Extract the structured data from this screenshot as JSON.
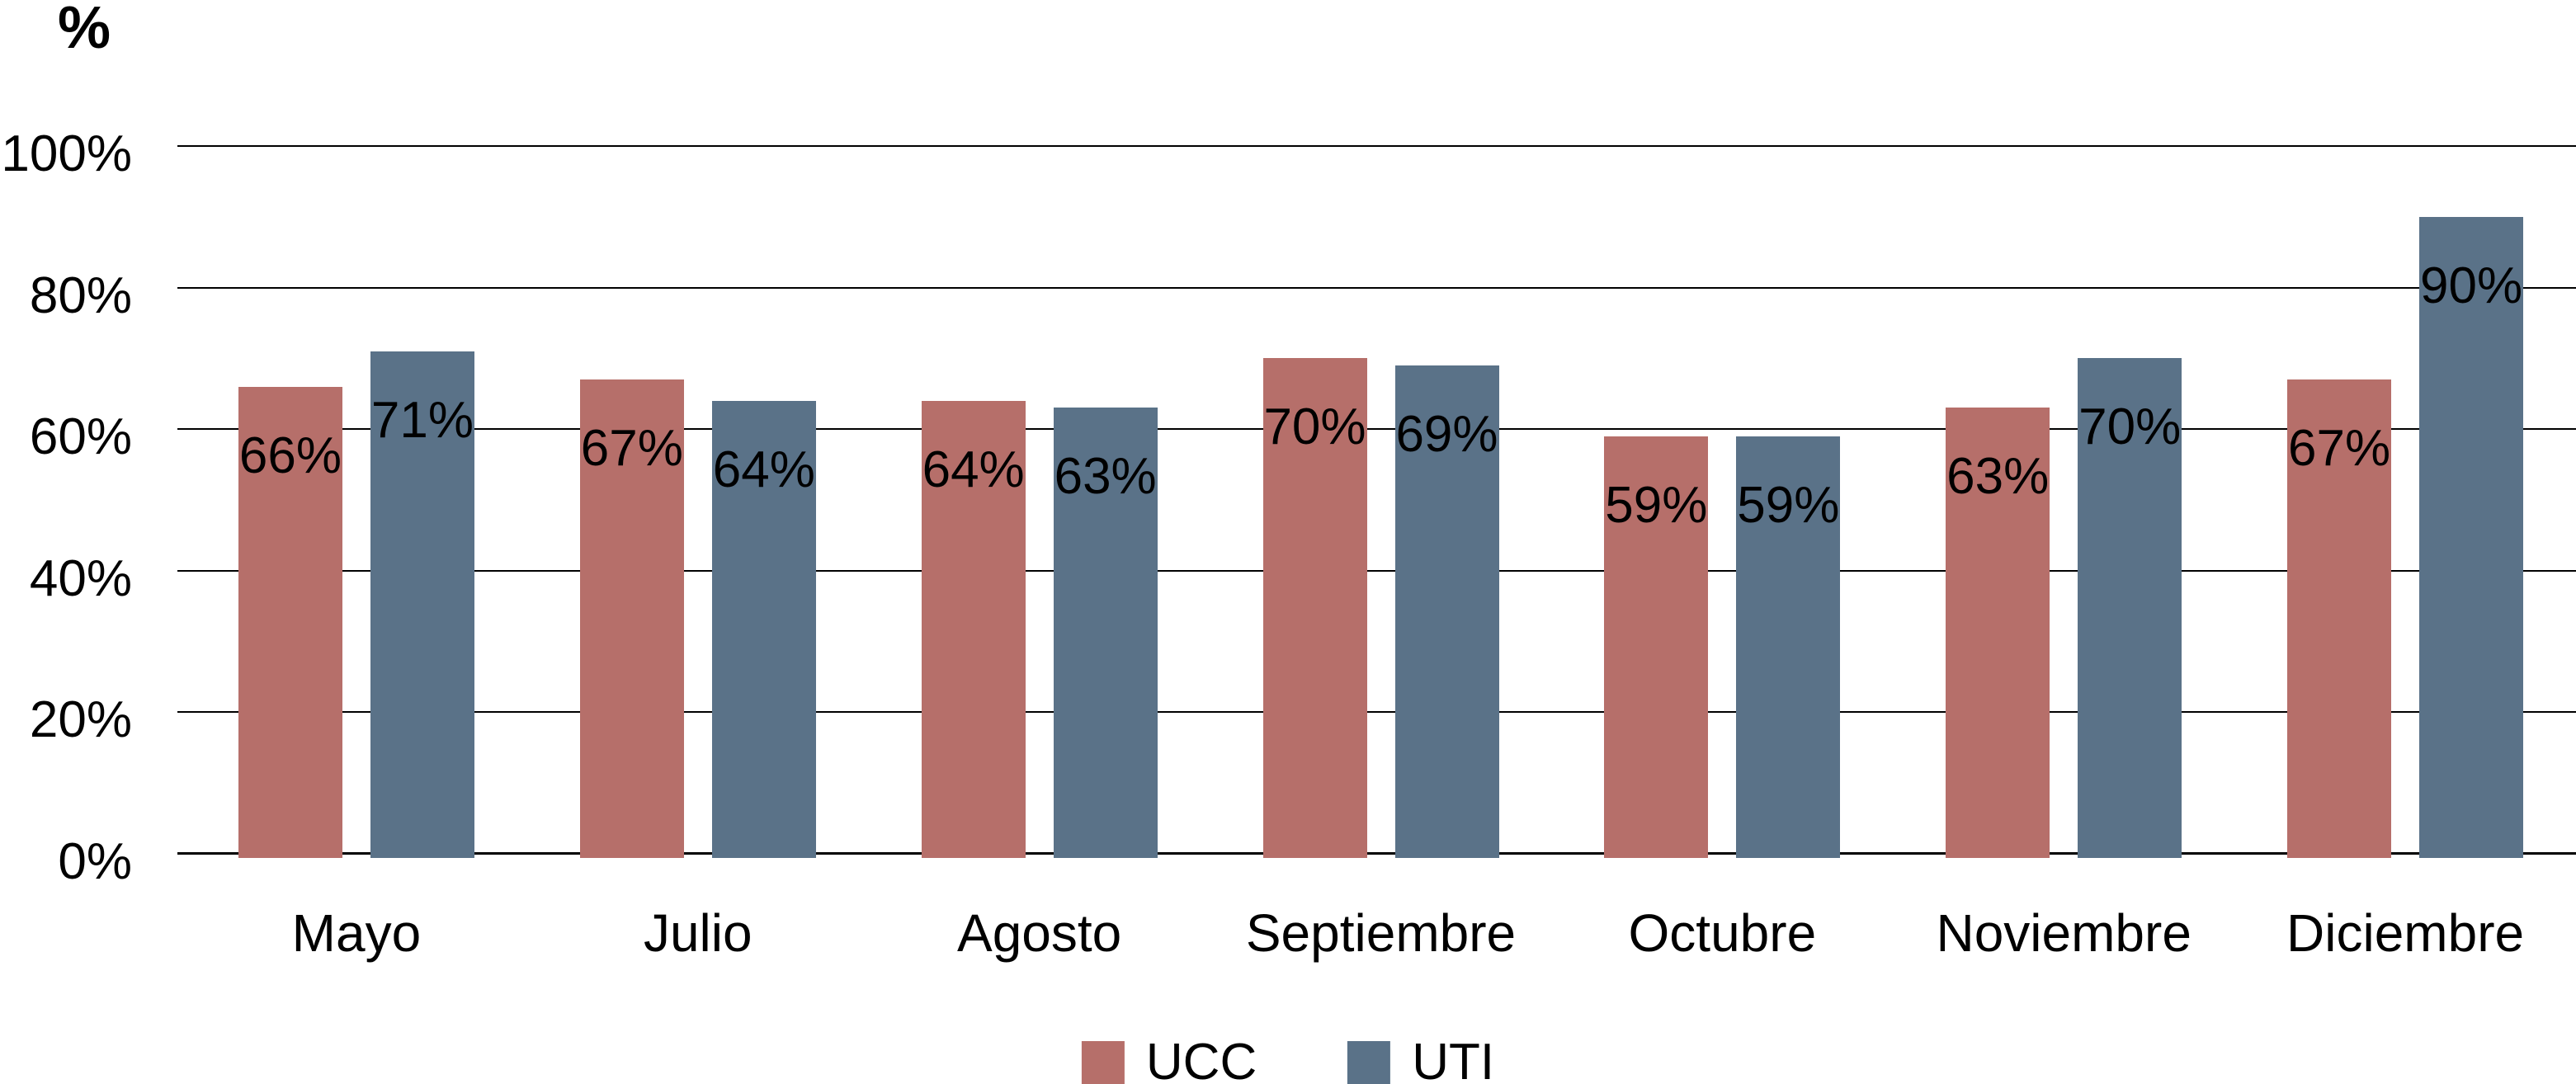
{
  "page": {
    "background": "#ffffff"
  },
  "chart_data": {
    "type": "bar",
    "title": "",
    "y_axis_title": "%",
    "categories": [
      "Mayo",
      "Julio",
      "Agosto",
      "Septiembre",
      "Octubre",
      "Noviembre",
      "Diciembre"
    ],
    "series": [
      {
        "name": "UCC",
        "color": "#b66f6a",
        "values": [
          66,
          67,
          64,
          70,
          59,
          63,
          67
        ],
        "data_labels": [
          "66%",
          "67%",
          "64%",
          "70%",
          "59%",
          "63%",
          "67%"
        ]
      },
      {
        "name": "UTI",
        "color": "#5a7288",
        "values": [
          71,
          64,
          63,
          69,
          59,
          70,
          90
        ],
        "data_labels": [
          "71%",
          "64%",
          "63%",
          "69%",
          "59%",
          "70%",
          "90%"
        ]
      }
    ],
    "y_ticks": [
      {
        "value": 0,
        "label": "0%"
      },
      {
        "value": 20,
        "label": "20%"
      },
      {
        "value": 40,
        "label": "40%"
      },
      {
        "value": 60,
        "label": "60%"
      },
      {
        "value": 80,
        "label": "80%"
      },
      {
        "value": 100,
        "label": "100%"
      }
    ],
    "ylim": [
      0,
      100
    ],
    "grid": "horizontal",
    "gridline_color": "#000000",
    "label_color": "#000000",
    "legend_position": "bottom-center"
  },
  "legend": {
    "items": [
      {
        "label": "UCC",
        "color": "#b66f6a"
      },
      {
        "label": "UTI",
        "color": "#5a7288"
      }
    ]
  }
}
